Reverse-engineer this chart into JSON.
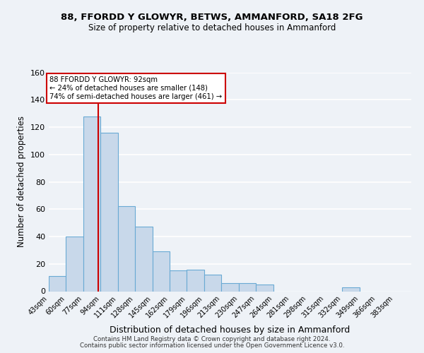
{
  "title": "88, FFORDD Y GLOWYR, BETWS, AMMANFORD, SA18 2FG",
  "subtitle": "Size of property relative to detached houses in Ammanford",
  "xlabel": "Distribution of detached houses by size in Ammanford",
  "ylabel": "Number of detached properties",
  "bar_color": "#c8d8ea",
  "bar_edge_color": "#6aaad4",
  "bin_labels": [
    "43sqm",
    "60sqm",
    "77sqm",
    "94sqm",
    "111sqm",
    "128sqm",
    "145sqm",
    "162sqm",
    "179sqm",
    "196sqm",
    "213sqm",
    "230sqm",
    "247sqm",
    "264sqm",
    "281sqm",
    "298sqm",
    "315sqm",
    "332sqm",
    "349sqm",
    "366sqm",
    "383sqm"
  ],
  "bar_values": [
    11,
    40,
    128,
    116,
    62,
    47,
    29,
    15,
    16,
    12,
    6,
    6,
    5,
    0,
    0,
    0,
    0,
    3,
    0,
    0,
    0
  ],
  "ylim": [
    0,
    160
  ],
  "yticks": [
    0,
    20,
    40,
    60,
    80,
    100,
    120,
    140,
    160
  ],
  "property_line_x": 92,
  "property_line_label": "88 FFORDD Y GLOWYR: 92sqm",
  "annotation_line1": "← 24% of detached houses are smaller (148)",
  "annotation_line2": "74% of semi-detached houses are larger (461) →",
  "annotation_box_color": "#ffffff",
  "annotation_box_edge": "#cc0000",
  "red_line_color": "#cc0000",
  "footer_line1": "Contains HM Land Registry data © Crown copyright and database right 2024.",
  "footer_line2": "Contains public sector information licensed under the Open Government Licence v3.0.",
  "background_color": "#eef2f7",
  "grid_color": "#ffffff"
}
